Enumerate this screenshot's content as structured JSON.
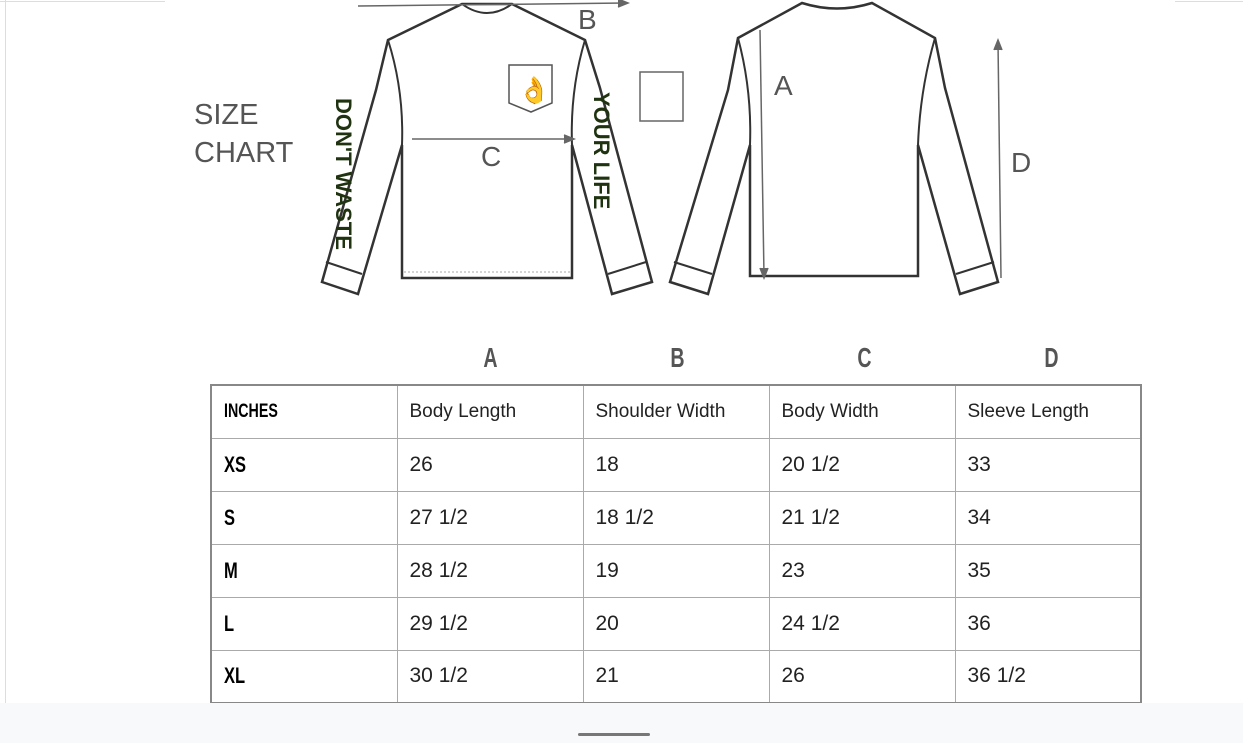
{
  "title": {
    "line1": "SIZE",
    "line2": "CHART"
  },
  "diagram": {
    "labels": {
      "a": "A",
      "b": "B",
      "c": "C",
      "d": "D"
    },
    "sleeve_left": "DON'T WASTE",
    "sleeve_right": "YOUR LIFE"
  },
  "columns_letters": [
    "A",
    "B",
    "C",
    "D"
  ],
  "table": {
    "header": [
      "INCHES",
      "Body Length",
      "Shoulder Width",
      "Body Width",
      "Sleeve Length"
    ],
    "rows": [
      [
        "XS",
        "26",
        "18",
        "20 1/2",
        "33"
      ],
      [
        "S",
        "27 1/2",
        "18 1/2",
        "21 1/2",
        "34"
      ],
      [
        "M",
        "28 1/2",
        "19",
        "23",
        "35"
      ],
      [
        "L",
        "29 1/2",
        "20",
        "24 1/2",
        "36"
      ],
      [
        "XL",
        "30 1/2",
        "21",
        "26",
        "36 1/2"
      ]
    ]
  }
}
